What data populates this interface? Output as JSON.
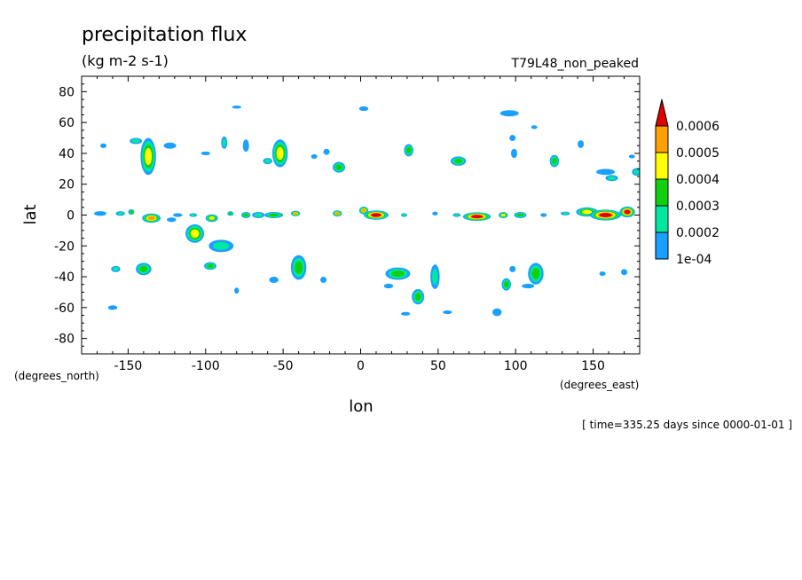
{
  "chart_data": {
    "type": "heatmap",
    "title": "precipitation flux",
    "units": "(kg m-2 s-1)",
    "dataset_label": "T79L48_non_peaked",
    "xlabel": "lon",
    "ylabel": "lat",
    "x_units": "(degrees_east)",
    "y_units": "(degrees_north)",
    "time_label": "[ time=335.25 days since 0000-01-01 ]",
    "xlim": [
      -180,
      180
    ],
    "ylim": [
      -90,
      90
    ],
    "x_ticks": [
      -150,
      -100,
      -50,
      0,
      50,
      100,
      150
    ],
    "x_tick_labels": [
      "-150",
      "-100",
      "-50",
      "0",
      "50",
      "100",
      "150"
    ],
    "y_ticks": [
      80,
      60,
      40,
      20,
      0,
      -20,
      -40,
      -60,
      -80
    ],
    "y_tick_labels": [
      "80",
      "60",
      "40",
      "20",
      "0",
      "-20",
      "-40",
      "-60",
      "-80"
    ],
    "colorbar": {
      "levels": [
        0.0001,
        0.0002,
        0.0003,
        0.0004,
        0.0005,
        0.0006
      ],
      "labels": [
        "1e-04",
        "0.0002",
        "0.0003",
        "0.0004",
        "0.0005",
        "0.0006"
      ],
      "colors": [
        "#1aa0ff",
        "#00e8a0",
        "#10d010",
        "#ffff00",
        "#ffa000",
        "#e00000"
      ]
    },
    "features": [
      {
        "lon": -168,
        "lat": 1,
        "rx": 4,
        "ry": 1.5,
        "level": 1
      },
      {
        "lon": -155,
        "lat": 1,
        "rx": 3,
        "ry": 1.5,
        "level": 2
      },
      {
        "lon": -148,
        "lat": 2,
        "rx": 2,
        "ry": 1.8,
        "level": 3
      },
      {
        "lon": -135,
        "lat": -2,
        "rx": 6,
        "ry": 3,
        "level": 5
      },
      {
        "lon": -118,
        "lat": 0,
        "rx": 3,
        "ry": 1.2,
        "level": 1
      },
      {
        "lon": -108,
        "lat": 0,
        "rx": 2.5,
        "ry": 1.2,
        "level": 2
      },
      {
        "lon": -96,
        "lat": -2,
        "rx": 4,
        "ry": 2.5,
        "level": 4
      },
      {
        "lon": -84,
        "lat": 1,
        "rx": 2,
        "ry": 1.5,
        "level": 3
      },
      {
        "lon": -74,
        "lat": 0,
        "rx": 3,
        "ry": 2,
        "level": 3
      },
      {
        "lon": -66,
        "lat": 0,
        "rx": 4,
        "ry": 2,
        "level": 2
      },
      {
        "lon": -56,
        "lat": 0,
        "rx": 6,
        "ry": 2,
        "level": 3
      },
      {
        "lon": -42,
        "lat": 1,
        "rx": 3,
        "ry": 1.8,
        "level": 5
      },
      {
        "lon": -15,
        "lat": 1,
        "rx": 3,
        "ry": 2,
        "level": 5
      },
      {
        "lon": 2,
        "lat": 3,
        "rx": 3,
        "ry": 2.5,
        "level": 5
      },
      {
        "lon": 10,
        "lat": 0,
        "rx": 8,
        "ry": 3,
        "level": 6
      },
      {
        "lon": 28,
        "lat": 0,
        "rx": 2,
        "ry": 1.2,
        "level": 2
      },
      {
        "lon": 48,
        "lat": 1,
        "rx": 1.8,
        "ry": 1.2,
        "level": 1
      },
      {
        "lon": 62,
        "lat": 0,
        "rx": 2.5,
        "ry": 1.2,
        "level": 2
      },
      {
        "lon": 75,
        "lat": -1,
        "rx": 9,
        "ry": 2.8,
        "level": 6
      },
      {
        "lon": 92,
        "lat": 0,
        "rx": 3,
        "ry": 2,
        "level": 4
      },
      {
        "lon": 103,
        "lat": 0,
        "rx": 4,
        "ry": 2,
        "level": 3
      },
      {
        "lon": 118,
        "lat": 0,
        "rx": 2,
        "ry": 1.2,
        "level": 1
      },
      {
        "lon": 132,
        "lat": 1,
        "rx": 3,
        "ry": 1.2,
        "level": 2
      },
      {
        "lon": 146,
        "lat": 2,
        "rx": 7,
        "ry": 3,
        "level": 4
      },
      {
        "lon": 158,
        "lat": 0,
        "rx": 10,
        "ry": 3.5,
        "level": 6
      },
      {
        "lon": 172,
        "lat": 2,
        "rx": 5,
        "ry": 3.5,
        "level": 6
      },
      {
        "lon": -137,
        "lat": 38,
        "rx": 5,
        "ry": 12,
        "level": 4
      },
      {
        "lon": -145,
        "lat": 48,
        "rx": 4,
        "ry": 2,
        "level": 2
      },
      {
        "lon": -123,
        "lat": 45,
        "rx": 4,
        "ry": 2,
        "level": 1
      },
      {
        "lon": -166,
        "lat": 45,
        "rx": 2,
        "ry": 1.5,
        "level": 1
      },
      {
        "lon": -100,
        "lat": 40,
        "rx": 3,
        "ry": 1.2,
        "level": 1
      },
      {
        "lon": -88,
        "lat": 47,
        "rx": 2,
        "ry": 4,
        "level": 2
      },
      {
        "lon": -52,
        "lat": 40,
        "rx": 5,
        "ry": 9,
        "level": 4
      },
      {
        "lon": -74,
        "lat": 45,
        "rx": 2,
        "ry": 4,
        "level": 1
      },
      {
        "lon": -60,
        "lat": 35,
        "rx": 3,
        "ry": 2,
        "level": 2
      },
      {
        "lon": -80,
        "lat": 70,
        "rx": 3,
        "ry": 1,
        "level": 1
      },
      {
        "lon": -30,
        "lat": 38,
        "rx": 2,
        "ry": 1.5,
        "level": 1
      },
      {
        "lon": -14,
        "lat": 31,
        "rx": 4,
        "ry": 3.5,
        "level": 3
      },
      {
        "lon": -22,
        "lat": 41,
        "rx": 2,
        "ry": 2,
        "level": 1
      },
      {
        "lon": 2,
        "lat": 69,
        "rx": 3,
        "ry": 1.5,
        "level": 1
      },
      {
        "lon": 31,
        "lat": 42,
        "rx": 3,
        "ry": 4,
        "level": 3
      },
      {
        "lon": 63,
        "lat": 35,
        "rx": 5,
        "ry": 3,
        "level": 3
      },
      {
        "lon": 96,
        "lat": 66,
        "rx": 6,
        "ry": 2,
        "level": 1
      },
      {
        "lon": 98,
        "lat": 50,
        "rx": 2,
        "ry": 2,
        "level": 1
      },
      {
        "lon": 99,
        "lat": 40,
        "rx": 2,
        "ry": 3,
        "level": 1
      },
      {
        "lon": 112,
        "lat": 57,
        "rx": 2,
        "ry": 1.2,
        "level": 1
      },
      {
        "lon": 125,
        "lat": 35,
        "rx": 3,
        "ry": 4,
        "level": 3
      },
      {
        "lon": 142,
        "lat": 46,
        "rx": 2,
        "ry": 2.5,
        "level": 1
      },
      {
        "lon": 162,
        "lat": 24,
        "rx": 4,
        "ry": 2,
        "level": 2
      },
      {
        "lon": 158,
        "lat": 28,
        "rx": 6,
        "ry": 2,
        "level": 1
      },
      {
        "lon": 175,
        "lat": 38,
        "rx": 2,
        "ry": 1.2,
        "level": 1
      },
      {
        "lon": 178,
        "lat": 28,
        "rx": 3,
        "ry": 2.5,
        "level": 2
      },
      {
        "lon": -107,
        "lat": -12,
        "rx": 6,
        "ry": 6,
        "level": 4
      },
      {
        "lon": -90,
        "lat": -20,
        "rx": 8,
        "ry": 4,
        "level": 2
      },
      {
        "lon": -122,
        "lat": -3,
        "rx": 3,
        "ry": 1.5,
        "level": 1
      },
      {
        "lon": -158,
        "lat": -35,
        "rx": 3,
        "ry": 2,
        "level": 2
      },
      {
        "lon": -140,
        "lat": -35,
        "rx": 5,
        "ry": 4,
        "level": 3
      },
      {
        "lon": -97,
        "lat": -33,
        "rx": 4,
        "ry": 2.5,
        "level": 3
      },
      {
        "lon": -160,
        "lat": -60,
        "rx": 3,
        "ry": 1.5,
        "level": 1
      },
      {
        "lon": -80,
        "lat": -49,
        "rx": 1.5,
        "ry": 2,
        "level": 1
      },
      {
        "lon": -56,
        "lat": -42,
        "rx": 3,
        "ry": 2,
        "level": 1
      },
      {
        "lon": -40,
        "lat": -34,
        "rx": 5,
        "ry": 8,
        "level": 3
      },
      {
        "lon": -24,
        "lat": -42,
        "rx": 2,
        "ry": 2,
        "level": 1
      },
      {
        "lon": 24,
        "lat": -38,
        "rx": 8,
        "ry": 4,
        "level": 3
      },
      {
        "lon": 37,
        "lat": -53,
        "rx": 4,
        "ry": 5,
        "level": 3
      },
      {
        "lon": 48,
        "lat": -40,
        "rx": 3,
        "ry": 8,
        "level": 2
      },
      {
        "lon": 18,
        "lat": -46,
        "rx": 3,
        "ry": 1.5,
        "level": 1
      },
      {
        "lon": 56,
        "lat": -63,
        "rx": 3,
        "ry": 1.2,
        "level": 1
      },
      {
        "lon": 29,
        "lat": -64,
        "rx": 3,
        "ry": 1.2,
        "level": 1
      },
      {
        "lon": 94,
        "lat": -45,
        "rx": 3,
        "ry": 4,
        "level": 3
      },
      {
        "lon": 113,
        "lat": -38,
        "rx": 5,
        "ry": 7,
        "level": 3
      },
      {
        "lon": 108,
        "lat": -46,
        "rx": 4,
        "ry": 1.5,
        "level": 1
      },
      {
        "lon": 88,
        "lat": -63,
        "rx": 3,
        "ry": 2.5,
        "level": 1
      },
      {
        "lon": 98,
        "lat": -35,
        "rx": 2,
        "ry": 2,
        "level": 1
      },
      {
        "lon": 156,
        "lat": -38,
        "rx": 2,
        "ry": 1.5,
        "level": 1
      },
      {
        "lon": 170,
        "lat": -37,
        "rx": 2,
        "ry": 2,
        "level": 1
      }
    ]
  }
}
